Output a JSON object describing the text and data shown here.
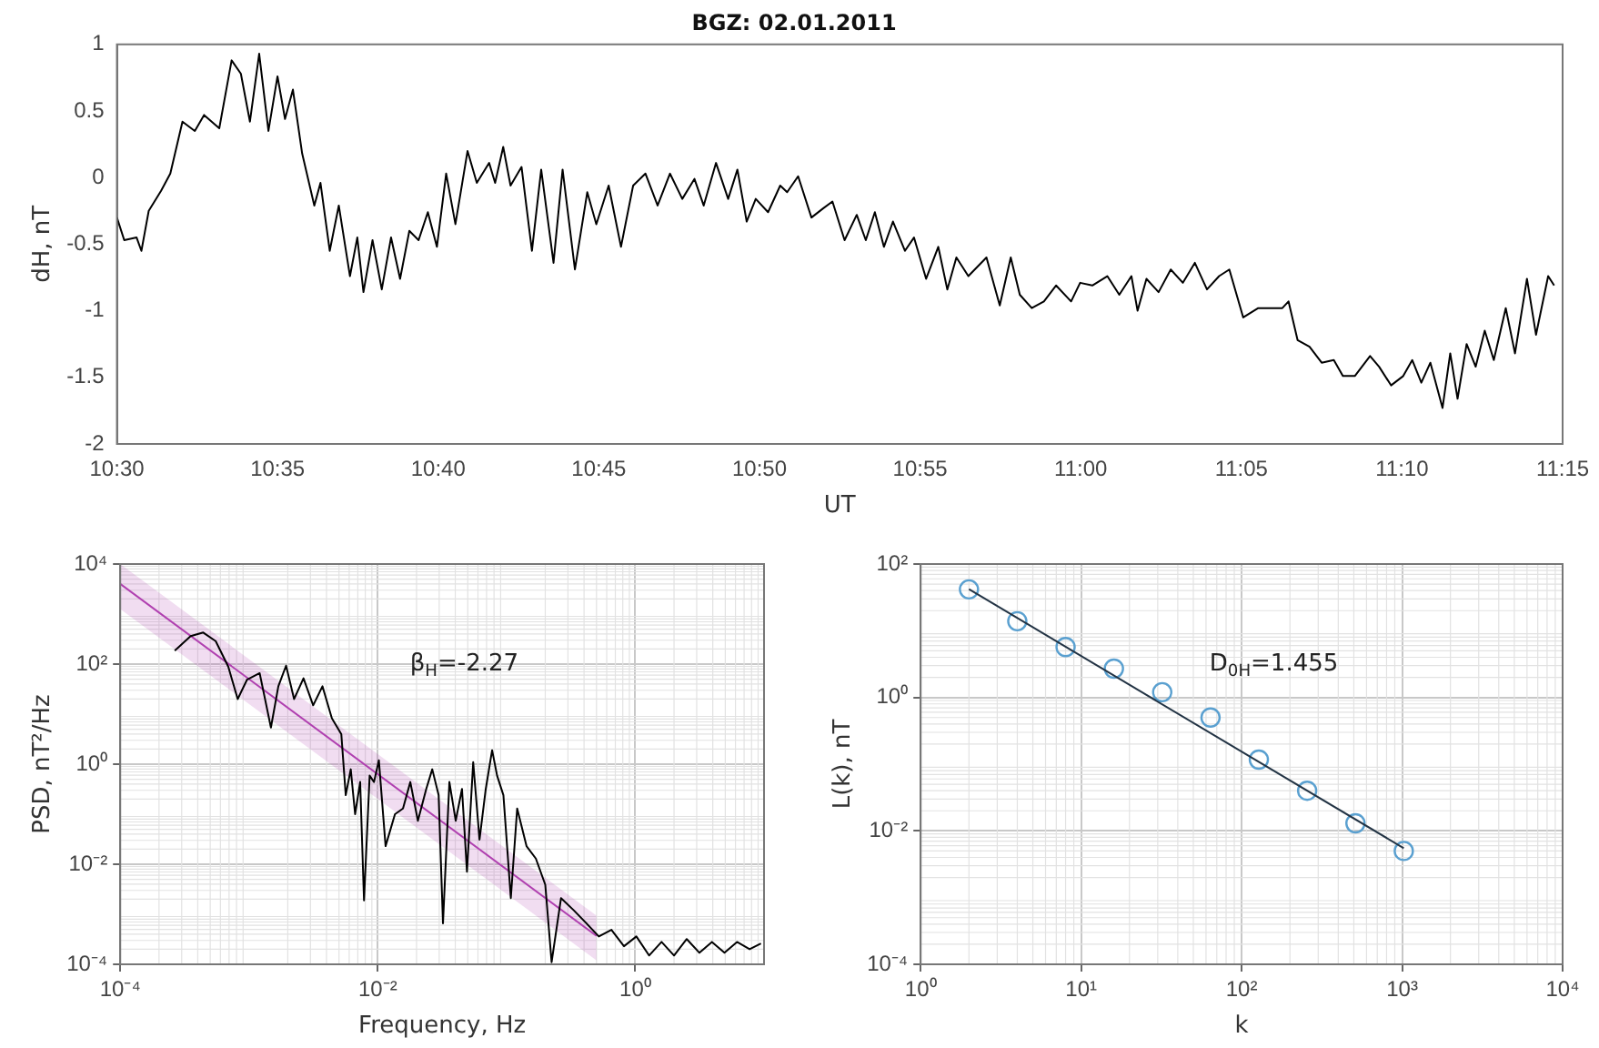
{
  "chart_data": [
    {
      "type": "line",
      "title": "BGZ: 02.01.2011",
      "xlabel": "UT",
      "ylabel": "dH, nT",
      "xlim": [
        10.5,
        11.25
      ],
      "xticks": [
        {
          "value": 10.5,
          "label": "10:30"
        },
        {
          "value": 10.583333,
          "label": "10:35"
        },
        {
          "value": 10.666667,
          "label": "10:40"
        },
        {
          "value": 10.75,
          "label": "10:45"
        },
        {
          "value": 10.833333,
          "label": "10:50"
        },
        {
          "value": 10.916667,
          "label": "10:55"
        },
        {
          "value": 11,
          "label": "11:00"
        },
        {
          "value": 11.083333,
          "label": "11:05"
        },
        {
          "value": 11.166667,
          "label": "11:10"
        },
        {
          "value": 11.25,
          "label": "11:15"
        }
      ],
      "ylim": [
        -2,
        1
      ],
      "yticks": [
        -2,
        -1.5,
        -1,
        -0.5,
        0,
        0.5,
        1
      ],
      "x": [
        10.5,
        10.5038,
        10.5102,
        10.5127,
        10.5165,
        10.5229,
        10.5277,
        10.534,
        10.5404,
        10.5452,
        10.5531,
        10.5595,
        10.5643,
        10.569,
        10.5738,
        10.5786,
        10.5833,
        10.5872,
        10.5913,
        10.5961,
        10.6024,
        10.6056,
        10.6104,
        10.6151,
        10.6209,
        10.6247,
        10.6279,
        10.6326,
        10.6374,
        10.6422,
        10.6469,
        10.6517,
        10.6565,
        10.6613,
        10.666,
        10.6708,
        10.6756,
        10.6819,
        10.6867,
        10.6931,
        10.6962,
        10.7004,
        10.7042,
        10.7099,
        10.7153,
        10.7201,
        10.7265,
        10.7312,
        10.7376,
        10.744,
        10.7487,
        10.7551,
        10.7615,
        10.7678,
        10.7742,
        10.7805,
        10.7869,
        10.7933,
        10.7996,
        10.8044,
        10.8108,
        10.8171,
        10.8219,
        10.8267,
        10.8314,
        10.8378,
        10.8441,
        10.8477,
        10.8534,
        10.8603,
        10.8665,
        10.8712,
        10.8775,
        10.8838,
        10.8885,
        10.8932,
        10.8979,
        10.9026,
        10.9088,
        10.9135,
        10.9198,
        10.9261,
        10.9308,
        10.9355,
        10.9417,
        10.9511,
        10.958,
        10.9637,
        10.9684,
        10.9746,
        10.9809,
        10.9872,
        10.995,
        10.9997,
        11.006,
        11.0138,
        11.02,
        11.0263,
        11.0295,
        11.0341,
        11.0404,
        11.0467,
        11.053,
        11.0592,
        11.0655,
        11.0718,
        11.0771,
        11.0843,
        11.0921,
        11.1046,
        11.1078,
        11.1125,
        11.1187,
        11.125,
        11.1313,
        11.136,
        11.1422,
        11.1501,
        11.1548,
        11.161,
        11.1673,
        11.172,
        11.1767,
        11.1814,
        11.1877,
        11.1917,
        11.1955,
        11.2002,
        11.2049,
        11.2096,
        11.2143,
        11.2205,
        11.2253,
        11.2315,
        11.2362,
        11.2425,
        11.2456
      ],
      "series": [
        {
          "color": "#000000",
          "values": [
            -0.3,
            -0.47,
            -0.45,
            -0.55,
            -0.25,
            -0.1,
            0.03,
            0.42,
            0.35,
            0.47,
            0.37,
            0.88,
            0.78,
            0.42,
            0.93,
            0.35,
            0.76,
            0.44,
            0.66,
            0.18,
            -0.21,
            -0.04,
            -0.55,
            -0.21,
            -0.74,
            -0.45,
            -0.86,
            -0.47,
            -0.84,
            -0.45,
            -0.76,
            -0.4,
            -0.47,
            -0.26,
            -0.52,
            0.03,
            -0.35,
            0.2,
            -0.04,
            0.11,
            -0.04,
            0.23,
            -0.06,
            0.08,
            -0.55,
            0.06,
            -0.64,
            0.06,
            -0.69,
            -0.11,
            -0.35,
            -0.06,
            -0.52,
            -0.06,
            0.03,
            -0.21,
            0.03,
            -0.16,
            -0.01,
            -0.21,
            0.11,
            -0.16,
            0.06,
            -0.33,
            -0.16,
            -0.26,
            -0.06,
            -0.11,
            0.01,
            -0.3,
            -0.23,
            -0.18,
            -0.47,
            -0.28,
            -0.47,
            -0.26,
            -0.52,
            -0.33,
            -0.55,
            -0.45,
            -0.76,
            -0.52,
            -0.84,
            -0.6,
            -0.74,
            -0.6,
            -0.96,
            -0.6,
            -0.88,
            -0.98,
            -0.93,
            -0.81,
            -0.93,
            -0.79,
            -0.81,
            -0.74,
            -0.88,
            -0.74,
            -1,
            -0.76,
            -0.86,
            -0.69,
            -0.79,
            -0.64,
            -0.84,
            -0.74,
            -0.69,
            -1.05,
            -0.98,
            -0.98,
            -0.93,
            -1.22,
            -1.27,
            -1.39,
            -1.37,
            -1.49,
            -1.49,
            -1.34,
            -1.42,
            -1.56,
            -1.49,
            -1.37,
            -1.54,
            -1.39,
            -1.73,
            -1.32,
            -1.66,
            -1.25,
            -1.42,
            -1.15,
            -1.37,
            -0.98,
            -1.32,
            -0.76,
            -1.18,
            -0.74,
            -0.81
          ]
        }
      ]
    },
    {
      "type": "line",
      "log": "xy",
      "grid": true,
      "xlabel": "Frequency, Hz",
      "ylabel": "PSD, nT²/Hz",
      "annotations": [
        "β$_{H}$=-2.27"
      ],
      "xlim": [
        0.0001,
        10
      ],
      "xticks": [
        {
          "value": 0.0001,
          "label": "10⁻⁴"
        },
        {
          "value": 0.01,
          "label": "10⁻²"
        },
        {
          "value": 1,
          "label": "10⁰"
        }
      ],
      "ylim": [
        0.0001,
        10000
      ],
      "yticks": [
        {
          "value": 0.0001,
          "label": "10⁻⁴"
        },
        {
          "value": 0.01,
          "label": "10⁻²"
        },
        {
          "value": 1,
          "label": "10⁰"
        },
        {
          "value": 100,
          "label": "10²"
        },
        {
          "value": 10000,
          "label": "10⁴"
        }
      ],
      "series": [
        {
          "color": "#000000",
          "x": [
            0.000265,
            0.000352,
            0.000441,
            0.000551,
            0.00069,
            0.000817,
            0.000966,
            0.00121,
            0.00148,
            0.00169,
            0.00194,
            0.00224,
            0.00265,
            0.00315,
            0.00372,
            0.0044,
            0.00521,
            0.00564,
            0.00617,
            0.00667,
            0.0073,
            0.00782,
            0.00865,
            0.00935,
            0.0102,
            0.0115,
            0.0136,
            0.0157,
            0.0179,
            0.0205,
            0.0238,
            0.0265,
            0.0297,
            0.0321,
            0.036,
            0.0403,
            0.0451,
            0.0493,
            0.0551,
            0.0617,
            0.069,
            0.0773,
            0.0845,
            0.0946,
            0.108,
            0.121,
            0.143,
            0.169,
            0.2,
            0.224,
            0.265,
            0.333,
            0.417,
            0.521,
            0.653,
            0.817,
            1.02,
            1.28,
            1.6,
            2,
            2.51,
            3.15,
            3.94,
            4.93,
            6.17,
            7.73,
            9.46
          ],
          "values": [
            186,
            363,
            427,
            288,
            89,
            20,
            49,
            66,
            5.4,
            36,
            93,
            20,
            52,
            15,
            36,
            8.3,
            4,
            0.24,
            0.79,
            0.1,
            0.44,
            0.0019,
            0.59,
            0.44,
            1.2,
            0.023,
            0.1,
            0.13,
            0.44,
            0.074,
            0.32,
            0.79,
            0.24,
            0.00066,
            0.44,
            0.074,
            0.32,
            0.0071,
            1.1,
            0.031,
            0.32,
            1.9,
            0.59,
            0.24,
            0.0021,
            0.13,
            0.023,
            0.013,
            0.0039,
            0.00011,
            0.0021,
            0.0012,
            0.00066,
            0.00036,
            0.00049,
            0.00023,
            0.00036,
            0.00015,
            0.00028,
            0.00015,
            0.00032,
            0.00017,
            0.00028,
            0.00017,
            0.00028,
            0.0002,
            0.00026
          ]
        },
        {
          "color": "#b040b0",
          "x": [
            0.0001,
            0.5
          ],
          "values": [
            4000,
            0.00037
          ],
          "lower": [
            1260,
            0.00012
          ],
          "upper": [
            10000,
            0.00094
          ]
        }
      ]
    },
    {
      "type": "scatter",
      "log": "xy",
      "grid": true,
      "marker": "circle",
      "xlabel": "k",
      "ylabel": "L(k), nT",
      "annotations": [
        "D$_{0H}$=1.455"
      ],
      "xlim": [
        1,
        10000
      ],
      "xticks": [
        {
          "value": 1,
          "label": "10⁰"
        },
        {
          "value": 10,
          "label": "10¹"
        },
        {
          "value": 100,
          "label": "10²"
        },
        {
          "value": 1000,
          "label": "10³"
        },
        {
          "value": 10000,
          "label": "10⁴"
        }
      ],
      "ylim": [
        0.0001,
        100
      ],
      "yticks": [
        {
          "value": 0.0001,
          "label": "10⁻⁴"
        },
        {
          "value": 0.01,
          "label": "10⁻²"
        },
        {
          "value": 1,
          "label": "10⁰"
        },
        {
          "value": 100,
          "label": "10²"
        }
      ],
      "series": [
        {
          "color": "#5aa0d0",
          "x": [
            2,
            4,
            8,
            16,
            32,
            64,
            128,
            256,
            512,
            1024
          ],
          "values": [
            41.7,
            13.9,
            5.7,
            2.7,
            1.2,
            0.5,
            0.117,
            0.04,
            0.013,
            0.005
          ]
        },
        {
          "type": "line",
          "marker": "none",
          "color": "#223344",
          "x": [
            2,
            1024
          ],
          "values": [
            42,
            0.0055
          ]
        }
      ]
    }
  ]
}
